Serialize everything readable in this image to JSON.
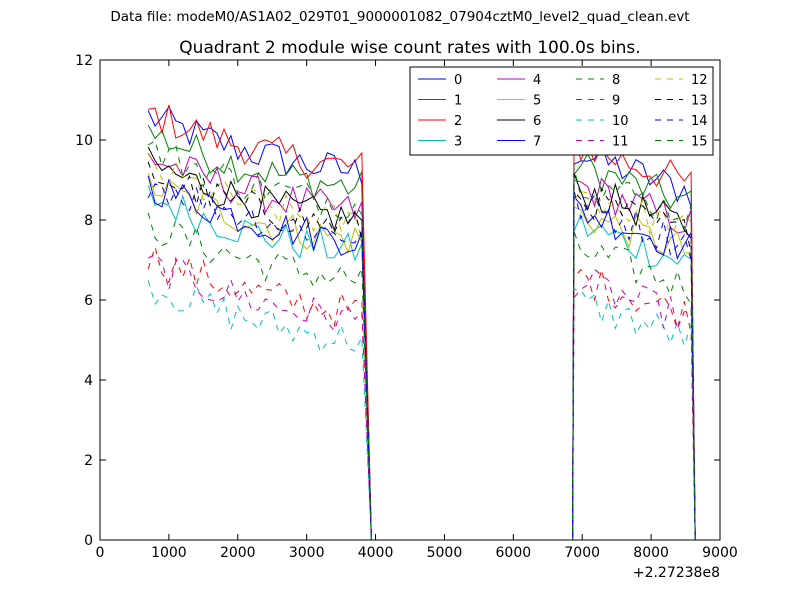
{
  "suptitle": "Data file: modeM0/AS1A02_029T01_9000001082_07904cztM0_level2_quad_clean.evt",
  "chart_data": {
    "type": "line",
    "title": "Quadrant 2 module wise count rates with 100.0s bins.",
    "xlabel": "",
    "ylabel": "",
    "x_offset_label": "+2.27238e8",
    "xlim": [
      0,
      9000
    ],
    "ylim": [
      0,
      12
    ],
    "xticks": [
      0,
      1000,
      2000,
      3000,
      4000,
      5000,
      6000,
      7000,
      8000,
      9000
    ],
    "yticks": [
      0,
      2,
      4,
      6,
      8,
      10,
      12
    ],
    "legend_position": "top-right",
    "legend_columns": 4,
    "segments": [
      {
        "start": 700,
        "end": 3800,
        "step": 100,
        "drop_end": 3940
      },
      {
        "start": 6880,
        "end": 8580,
        "step": 100,
        "drop_start": 6860,
        "drop_end": 8640
      }
    ],
    "series": [
      {
        "name": "0",
        "color": "#0000ff",
        "dash": "solid",
        "level1": 9.7,
        "level2": 9.0
      },
      {
        "name": "1",
        "color": "#008000",
        "dash": "solid",
        "level1": 9.3,
        "level2": 8.7
      },
      {
        "name": "2",
        "color": "#ff0000",
        "dash": "solid",
        "level1": 9.8,
        "level2": 9.2
      },
      {
        "name": "3",
        "color": "#00bfbf",
        "dash": "solid",
        "level1": 7.7,
        "level2": 7.2
      },
      {
        "name": "4",
        "color": "#bf00bf",
        "dash": "solid",
        "level1": 8.7,
        "level2": 8.2
      },
      {
        "name": "5",
        "color": "#bfbf00",
        "dash": "solid",
        "level1": 8.0,
        "level2": 7.5
      },
      {
        "name": "6",
        "color": "#000000",
        "dash": "solid",
        "level1": 8.5,
        "level2": 8.1
      },
      {
        "name": "7",
        "color": "#0000ff",
        "dash": "solid",
        "level1": 8.0,
        "level2": 7.6
      },
      {
        "name": "8",
        "color": "#008000",
        "dash": "dashed",
        "level1": 7.0,
        "level2": 6.6
      },
      {
        "name": "9",
        "color": "#ff0000",
        "dash": "dashed",
        "level1": 6.2,
        "level2": 5.9
      },
      {
        "name": "10",
        "color": "#00bfbf",
        "dash": "dashed",
        "level1": 5.5,
        "level2": 5.3
      },
      {
        "name": "11",
        "color": "#bf00bf",
        "dash": "dashed",
        "level1": 6.0,
        "level2": 5.8
      },
      {
        "name": "12",
        "color": "#bfbf00",
        "dash": "dashed",
        "level1": 8.4,
        "level2": 8.0
      },
      {
        "name": "13",
        "color": "#000000",
        "dash": "dashed",
        "level1": 8.3,
        "level2": 7.9
      },
      {
        "name": "14",
        "color": "#0000ff",
        "dash": "dashed",
        "level1": 8.1,
        "level2": 7.7
      },
      {
        "name": "15",
        "color": "#008000",
        "dash": "dashed",
        "level1": 8.9,
        "level2": 8.4
      }
    ]
  }
}
